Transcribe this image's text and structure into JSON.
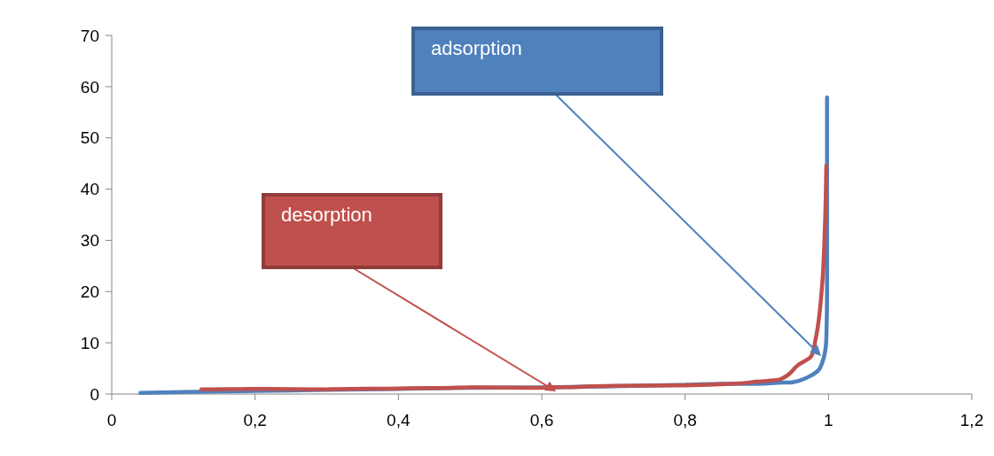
{
  "chart_data": {
    "type": "line",
    "xlim": [
      0,
      1.2
    ],
    "ylim": [
      0,
      70
    ],
    "xticks": [
      0,
      {
        "value": 0.2,
        "label": "0,2"
      },
      {
        "value": 0.4,
        "label": "0,4"
      },
      {
        "value": 0.6,
        "label": "0,6"
      },
      {
        "value": 0.8,
        "label": "0,8"
      },
      1,
      {
        "value": 1.2,
        "label": "1,2"
      }
    ],
    "yticks": [
      0,
      10,
      20,
      30,
      40,
      50,
      60,
      70
    ],
    "grid": false,
    "marker": "none",
    "line_style": "solid",
    "series": [
      {
        "color": "#4f81bd",
        "x": [
          0.04,
          0.1,
          0.2,
          0.3,
          0.4,
          0.5,
          0.6,
          0.7,
          0.8,
          0.85,
          0.9,
          0.93,
          0.95,
          0.97,
          0.985,
          0.991,
          0.997,
          0.998,
          0.998,
          0.998
        ],
        "values": [
          0.2,
          0.4,
          0.6,
          0.8,
          1.0,
          1.2,
          1.3,
          1.5,
          1.8,
          2.0,
          2.0,
          2.2,
          2.3,
          3.2,
          4.5,
          6,
          10.7,
          20,
          40,
          57.9
        ]
      },
      {
        "color": "#c0504d",
        "x": [
          0.125,
          0.2,
          0.3,
          0.4,
          0.5,
          0.6,
          0.65,
          0.7,
          0.8,
          0.85,
          0.9,
          0.933,
          0.958,
          0.976,
          0.982,
          0.991,
          0.995,
          0.997
        ],
        "values": [
          0.9,
          1.0,
          0.9,
          1.1,
          1.3,
          1.2,
          1.4,
          1.6,
          1.7,
          1.9,
          2.4,
          2.9,
          5.7,
          7.4,
          10.7,
          21,
          32.5,
          44.6
        ]
      }
    ],
    "annotations": [
      "adsorption",
      "desorption"
    ]
  }
}
